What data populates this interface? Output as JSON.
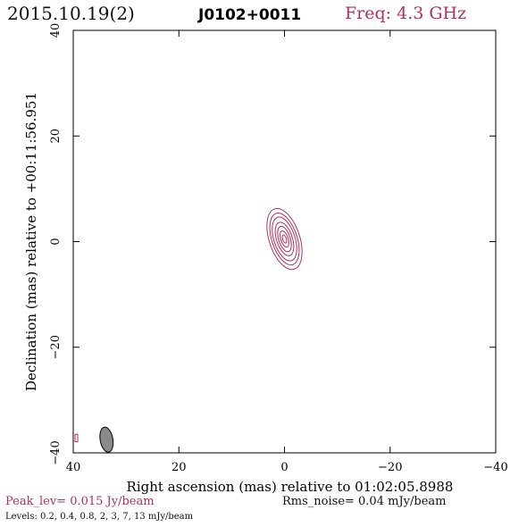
{
  "header": {
    "date": "2015.10.19(2)",
    "source": "J0102+0011",
    "freq": "Freq: 4.3 GHz"
  },
  "footer": {
    "peak": "Peak_lev=  0.015 Jy/beam",
    "rms": "Rms_noise= 0.04 mJy/beam",
    "levels": "Levels: 0.2, 0.4, 0.8,   2,   3,   7,  13 mJy/beam"
  },
  "colors": {
    "contour": "#b0305a",
    "beam_fill": "#8a8a8a",
    "axis": "#000000"
  },
  "chart_data": {
    "type": "contour",
    "xlabel": "Right ascension (mas) relative to 01:02:05.8988",
    "ylabel": "Declination (mas) relative to +00:11:56.951",
    "xlim": [
      40,
      -40
    ],
    "ylim": [
      -40,
      40
    ],
    "xticks": [
      40,
      20,
      0,
      -20,
      -40
    ],
    "yticks": [
      -40,
      -20,
      0,
      20,
      40
    ],
    "grid": false,
    "contour_levels_mJy": [
      0.2,
      0.4,
      0.8,
      2,
      3,
      7,
      13
    ],
    "source_component": {
      "center": [
        0,
        0.5
      ],
      "pa_deg": -18,
      "contours": [
        {
          "level": 0.2,
          "a": 2.9,
          "b": 6.0
        },
        {
          "level": 0.4,
          "a": 2.4,
          "b": 5.1
        },
        {
          "level": 0.8,
          "a": 2.0,
          "b": 4.3
        },
        {
          "level": 2,
          "a": 1.5,
          "b": 3.3
        },
        {
          "level": 3,
          "a": 1.1,
          "b": 2.5
        },
        {
          "level": 7,
          "a": 0.7,
          "b": 1.6
        },
        {
          "level": 13,
          "a": 0.35,
          "b": 0.8
        }
      ]
    },
    "edge_contour": {
      "center": [
        39.4,
        -37.2
      ],
      "w": 0.5,
      "h": 1.4
    },
    "beam": {
      "center": [
        33.7,
        -37.5
      ],
      "major": 4.8,
      "minor": 2.4,
      "pa_deg": -10
    }
  }
}
